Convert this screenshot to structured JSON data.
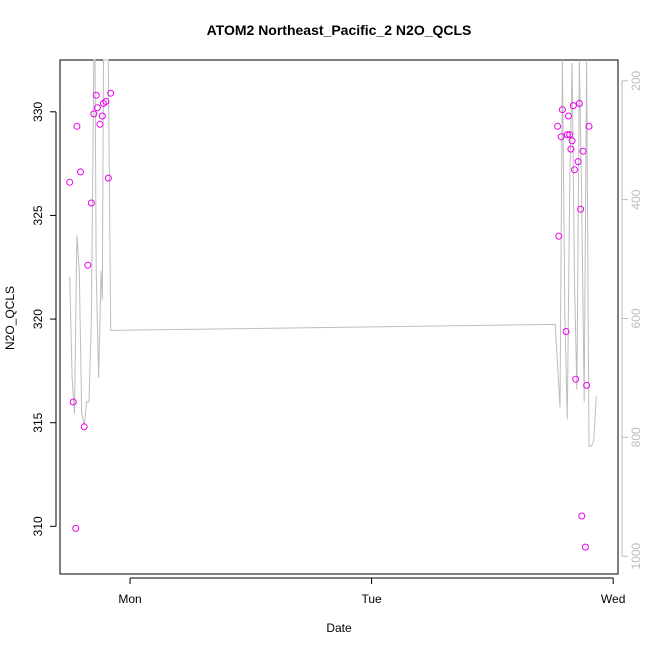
{
  "chart_data": {
    "type": "scatter",
    "title": "ATOM2 Northeast_Pacific_2 N2O_QCLS",
    "xlabel": "Date",
    "ylabel": "N2O_QCLS",
    "x_tick_labels": [
      "Mon",
      "Tue",
      "Wed"
    ],
    "x_ticks": [
      0,
      1,
      2
    ],
    "xlim": [
      -0.29,
      2.02
    ],
    "ylim": [
      307.7,
      332.5
    ],
    "y_ticks": [
      310,
      315,
      320,
      325,
      330
    ],
    "y_tick_labels": [
      "310",
      "315",
      "320",
      "325",
      "330"
    ],
    "right_axis": {
      "ylim": [
        1030,
        165
      ],
      "ticks": [
        200,
        400,
        600,
        800,
        1000
      ],
      "tick_labels": [
        "200",
        "400",
        "600",
        "800",
        "1000"
      ],
      "color": "#bdbdbd"
    },
    "series": [
      {
        "type": "scatter",
        "color": "#ee00ee",
        "x": [
          -0.25,
          -0.235,
          -0.225,
          -0.22,
          -0.205,
          -0.19,
          -0.175,
          -0.16,
          -0.15,
          -0.14,
          -0.135,
          -0.125,
          -0.115,
          -0.11,
          -0.1,
          -0.09,
          -0.08,
          1.77,
          1.775,
          1.785,
          1.79,
          1.805,
          1.81,
          1.815,
          1.82,
          1.825,
          1.83,
          1.835,
          1.84,
          1.845,
          1.855,
          1.86,
          1.865,
          1.87,
          1.875,
          1.885,
          1.89,
          1.9
        ],
        "y": [
          326.6,
          316.0,
          309.9,
          329.3,
          327.1,
          314.8,
          322.6,
          325.6,
          329.9,
          330.8,
          330.2,
          329.4,
          329.8,
          330.4,
          330.5,
          326.8,
          330.9,
          329.3,
          324.0,
          328.8,
          330.1,
          319.4,
          328.9,
          329.8,
          328.9,
          328.2,
          328.6,
          330.3,
          327.2,
          317.1,
          327.6,
          330.4,
          325.3,
          310.5,
          328.1,
          309.0,
          316.8,
          329.3
        ]
      },
      {
        "type": "line",
        "color": "#bdbdbd",
        "axis": "right",
        "x": [
          -0.25,
          -0.24,
          -0.23,
          -0.22,
          -0.21,
          -0.2,
          -0.19,
          -0.18,
          -0.17,
          -0.16,
          -0.15,
          -0.145,
          -0.14,
          -0.13,
          -0.12,
          -0.115,
          -0.11,
          -0.1,
          -0.09,
          -0.08,
          1.76,
          1.77,
          1.78,
          1.79,
          1.8,
          1.81,
          1.82,
          1.83,
          1.84,
          1.85,
          1.86,
          1.87,
          1.88,
          1.89,
          1.9,
          1.91,
          1.92,
          1.93
        ],
        "y": [
          530,
          700,
          760,
          460,
          520,
          760,
          780,
          740,
          740,
          600,
          165,
          165,
          520,
          700,
          520,
          570,
          165,
          165,
          165,
          620,
          610,
          680,
          750,
          165,
          600,
          770,
          380,
          170,
          540,
          720,
          165,
          420,
          740,
          165,
          815,
          815,
          805,
          730
        ]
      }
    ]
  }
}
